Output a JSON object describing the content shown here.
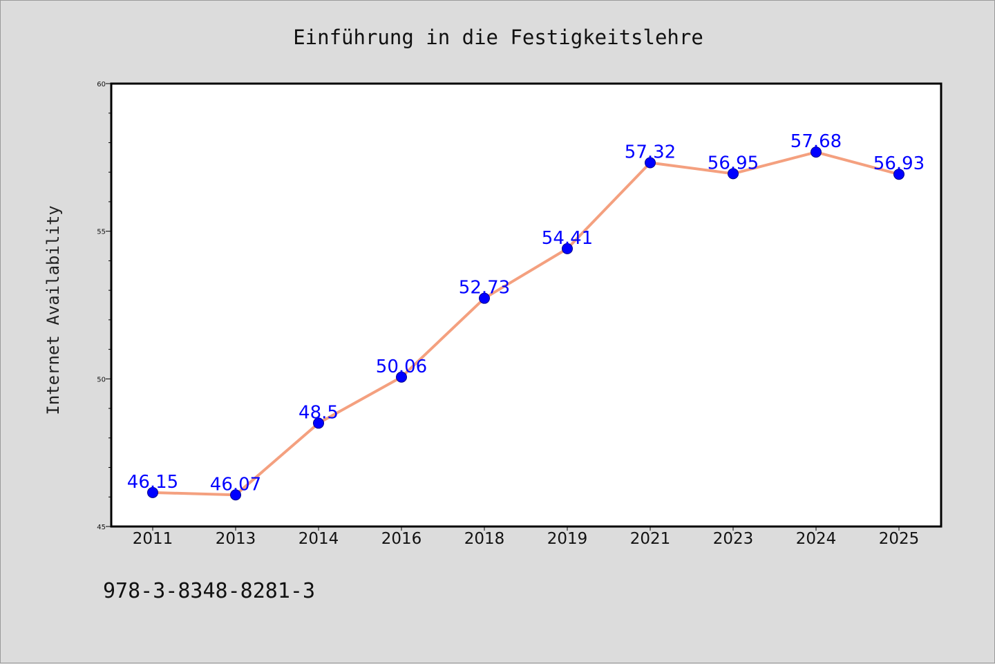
{
  "chart_data": {
    "type": "line",
    "title": "Einführung in die Festigkeitslehre",
    "xlabel": "",
    "ylabel": "Internet Availability",
    "categories": [
      "2011",
      "2013",
      "2014",
      "2016",
      "2018",
      "2019",
      "2021",
      "2023",
      "2024",
      "2025"
    ],
    "series": [
      {
        "values": [
          46.15,
          46.07,
          48.5,
          50.06,
          52.73,
          54.41,
          57.32,
          56.95,
          57.68,
          56.93
        ]
      }
    ],
    "data_labels": [
      "46.15",
      "46.07",
      "48.5",
      "50.06",
      "52.73",
      "54.41",
      "57.32",
      "56.95",
      "57.68",
      "56.93"
    ],
    "ylim": [
      45,
      60
    ],
    "yticks": [
      "45",
      "50",
      "55",
      "60"
    ],
    "grid": false,
    "legend": "none",
    "colors": {
      "line": "#f4a07f",
      "marker": "#0000ff",
      "labels": "#0000ff",
      "background": "#dcdcdc",
      "plot_background": "#ffffff"
    }
  },
  "footer": {
    "isbn": "978-3-8348-8281-3"
  }
}
